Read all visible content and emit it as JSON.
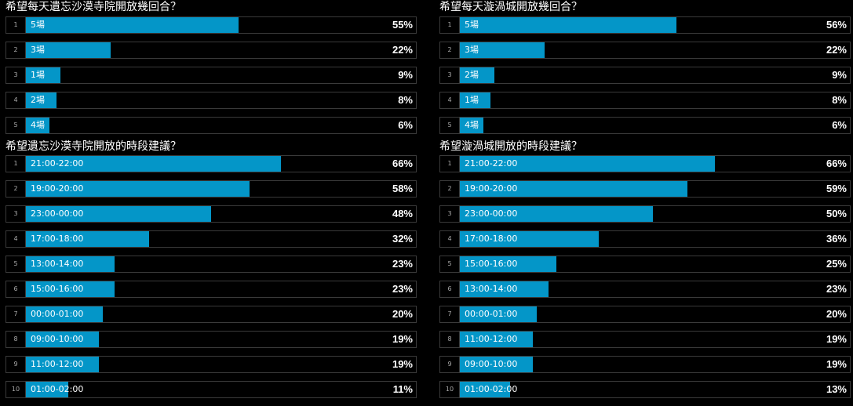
{
  "chart_data": [
    {
      "type": "bar",
      "title": "希望每天遺忘沙漠寺院開放幾回合？",
      "categories": [
        "5場",
        "3場",
        "1場",
        "2場",
        "4場"
      ],
      "values": [
        55,
        22,
        9,
        8,
        6
      ],
      "ranks": [
        "1",
        "2",
        "3",
        "4",
        "5"
      ],
      "labels": [
        "55%",
        "22%",
        "9%",
        "8%",
        "6%"
      ]
    },
    {
      "type": "bar",
      "title": "希望每天漩渦城開放幾回合？",
      "categories": [
        "5場",
        "3場",
        "2場",
        "1場",
        "4場"
      ],
      "values": [
        56,
        22,
        9,
        8,
        6
      ],
      "ranks": [
        "1",
        "2",
        "3",
        "4",
        "5"
      ],
      "labels": [
        "56%",
        "22%",
        "9%",
        "8%",
        "6%"
      ]
    },
    {
      "type": "bar",
      "title": "希望遺忘沙漠寺院開放的時段建議？",
      "categories": [
        "21:00-22:00",
        "19:00-20:00",
        "23:00-00:00",
        "17:00-18:00",
        "13:00-14:00",
        "15:00-16:00",
        "00:00-01:00",
        "09:00-10:00",
        "11:00-12:00",
        "01:00-02:00"
      ],
      "values": [
        66,
        58,
        48,
        32,
        23,
        23,
        20,
        19,
        19,
        11
      ],
      "ranks": [
        "1",
        "2",
        "3",
        "4",
        "5",
        "6",
        "7",
        "8",
        "9",
        "10"
      ],
      "labels": [
        "66%",
        "58%",
        "48%",
        "32%",
        "23%",
        "23%",
        "20%",
        "19%",
        "19%",
        "11%"
      ]
    },
    {
      "type": "bar",
      "title": "希望漩渦城開放的時段建議？",
      "categories": [
        "21:00-22:00",
        "19:00-20:00",
        "23:00-00:00",
        "17:00-18:00",
        "15:00-16:00",
        "13:00-14:00",
        "00:00-01:00",
        "11:00-12:00",
        "09:00-10:00",
        "01:00-02:00"
      ],
      "values": [
        66,
        59,
        50,
        36,
        25,
        23,
        20,
        19,
        19,
        13
      ],
      "ranks": [
        "1",
        "2",
        "3",
        "4",
        "5",
        "6",
        "7",
        "8",
        "9",
        "10"
      ],
      "labels": [
        "66%",
        "59%",
        "50%",
        "36%",
        "25%",
        "23%",
        "20%",
        "19%",
        "19%",
        "13%"
      ]
    }
  ],
  "colors": {
    "bar": "#0496c8",
    "background": "#000000",
    "border": "#3a3a3a"
  }
}
